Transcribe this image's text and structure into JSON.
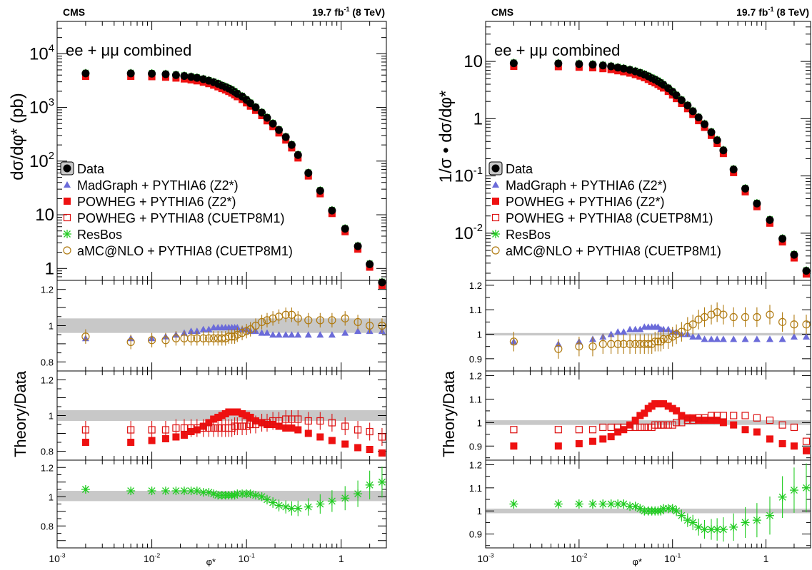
{
  "chart_data": {
    "type": "scatter",
    "x_scale": "log",
    "xlim": [
      0.001,
      3.0
    ],
    "x_ticks": [
      "10-3",
      "10-2",
      "10-1",
      "1"
    ],
    "xlabel": "φ*",
    "y_scale_top": "log",
    "colors": {
      "data": "#000000",
      "madgraph": "#6b6bd9",
      "powheg6": "#ee1111",
      "powheg8": "#dd1111",
      "resbos": "#22cc22",
      "amcnlo": "#b07a10",
      "band": "#c8c8c8"
    },
    "panels": [
      {
        "header_left": "CMS",
        "header_right": "19.7 fb-1 (8 TeV)",
        "channel": "ee + μμ combined",
        "ylabel_top": "dσ/dφ* (pb)",
        "ylabel_ratio": "Theory/Data",
        "ylim_top": [
          0.6,
          40000
        ],
        "y_ticks_top": [
          "1",
          "10",
          "102",
          "103",
          "104"
        ],
        "x": [
          0.002,
          0.006,
          0.01,
          0.014,
          0.018,
          0.022,
          0.026,
          0.03,
          0.035,
          0.04,
          0.045,
          0.05,
          0.055,
          0.06,
          0.065,
          0.07,
          0.075,
          0.08,
          0.09,
          0.1,
          0.11,
          0.125,
          0.145,
          0.165,
          0.19,
          0.22,
          0.26,
          0.3,
          0.35,
          0.45,
          0.6,
          0.8,
          1.1,
          1.5,
          2.0,
          2.7
        ],
        "data_values": [
          4300,
          4300,
          4250,
          4150,
          4000,
          3850,
          3700,
          3550,
          3350,
          3150,
          2950,
          2750,
          2550,
          2400,
          2250,
          2100,
          1950,
          1800,
          1600,
          1380,
          1200,
          1000,
          800,
          640,
          500,
          380,
          280,
          200,
          130,
          60,
          28,
          12,
          5.5,
          2.6,
          1.2,
          0.55
        ],
        "ratio_panels": [
          {
            "ylim": [
              0.75,
              1.25
            ],
            "y_ticks": [
              "0.8",
              "1",
              "1.2"
            ],
            "band": [
              0.96,
              1.04
            ],
            "series": [
              {
                "name": "MadGraph + PYTHIA6 (Z2*)",
                "marker": "triangle",
                "color": "#6b6bd9",
                "values": [
                  0.93,
                  0.93,
                  0.93,
                  0.94,
                  0.95,
                  0.96,
                  0.97,
                  0.97,
                  0.98,
                  0.98,
                  0.99,
                  0.99,
                  0.99,
                  0.99,
                  0.99,
                  0.99,
                  0.99,
                  0.99,
                  0.98,
                  0.98,
                  0.97,
                  0.97,
                  0.96,
                  0.96,
                  0.95,
                  0.95,
                  0.95,
                  0.95,
                  0.95,
                  0.95,
                  0.95,
                  0.95,
                  0.96,
                  0.97,
                  0.97,
                  0.97
                ]
              },
              {
                "name": "aMC@NLO + PYTHIA8 (CUETP8M1)",
                "marker": "circle-open",
                "color": "#b07a10",
                "err": 0.04,
                "values": [
                  0.94,
                  0.91,
                  0.92,
                  0.92,
                  0.93,
                  0.93,
                  0.93,
                  0.93,
                  0.93,
                  0.93,
                  0.93,
                  0.93,
                  0.93,
                  0.93,
                  0.94,
                  0.94,
                  0.94,
                  0.95,
                  0.96,
                  0.97,
                  0.98,
                  1.0,
                  1.02,
                  1.03,
                  1.04,
                  1.05,
                  1.06,
                  1.06,
                  1.04,
                  1.03,
                  1.03,
                  1.03,
                  1.04,
                  1.02,
                  1.0,
                  1.0
                ]
              }
            ]
          },
          {
            "ylim": [
              0.75,
              1.25
            ],
            "y_ticks": [
              "0.8",
              "1",
              "1.2"
            ],
            "band": [
              0.97,
              1.03
            ],
            "series": [
              {
                "name": "POWHEG + PYTHIA6 (Z2*)",
                "marker": "square-filled",
                "color": "#ee1111",
                "err": 0.02,
                "values": [
                  0.85,
                  0.85,
                  0.86,
                  0.87,
                  0.88,
                  0.89,
                  0.91,
                  0.92,
                  0.94,
                  0.96,
                  0.98,
                  0.99,
                  1.0,
                  1.01,
                  1.02,
                  1.02,
                  1.02,
                  1.02,
                  1.01,
                  1.0,
                  0.99,
                  0.97,
                  0.96,
                  0.95,
                  0.95,
                  0.94,
                  0.93,
                  0.93,
                  0.92,
                  0.9,
                  0.88,
                  0.86,
                  0.84,
                  0.82,
                  0.81,
                  0.79
                ]
              },
              {
                "name": "POWHEG + PYTHIA8 (CUETP8M1)",
                "marker": "square-open",
                "color": "#dd1111",
                "err": 0.05,
                "values": [
                  0.92,
                  0.92,
                  0.92,
                  0.92,
                  0.93,
                  0.93,
                  0.93,
                  0.93,
                  0.93,
                  0.93,
                  0.93,
                  0.93,
                  0.93,
                  0.93,
                  0.93,
                  0.93,
                  0.94,
                  0.94,
                  0.94,
                  0.94,
                  0.95,
                  0.95,
                  0.96,
                  0.96,
                  0.97,
                  0.97,
                  0.98,
                  0.98,
                  0.98,
                  0.97,
                  0.97,
                  0.96,
                  0.94,
                  0.92,
                  0.91,
                  0.88
                ]
              }
            ]
          },
          {
            "ylim": [
              0.65,
              1.25
            ],
            "y_ticks": [
              "0.8",
              "1",
              "1.2"
            ],
            "band": [
              0.97,
              1.04
            ],
            "series": [
              {
                "name": "ResBos",
                "marker": "star",
                "color": "#22cc22",
                "err_growth": true,
                "values": [
                  1.05,
                  1.04,
                  1.04,
                  1.04,
                  1.04,
                  1.04,
                  1.04,
                  1.04,
                  1.03,
                  1.03,
                  1.02,
                  1.01,
                  1.01,
                  1.01,
                  1.01,
                  1.01,
                  1.01,
                  1.02,
                  1.02,
                  1.02,
                  1.02,
                  1.01,
                  1.0,
                  0.98,
                  0.96,
                  0.94,
                  0.93,
                  0.92,
                  0.92,
                  0.93,
                  0.95,
                  0.97,
                  0.99,
                  1.02,
                  1.08,
                  1.1
                ]
              }
            ]
          }
        ]
      },
      {
        "header_left": "CMS",
        "header_right": "19.7 fb-1 (8 TeV)",
        "channel": "ee + μμ combined",
        "ylabel_top": "1/σ • dσ/dφ*",
        "ylabel_ratio": "Theory/Data",
        "ylim_top": [
          0.0015,
          50
        ],
        "y_ticks_top": [
          "10-2",
          "10-1",
          "1",
          "10"
        ],
        "x": [
          0.002,
          0.006,
          0.01,
          0.014,
          0.018,
          0.022,
          0.026,
          0.03,
          0.035,
          0.04,
          0.045,
          0.05,
          0.055,
          0.06,
          0.065,
          0.07,
          0.075,
          0.08,
          0.09,
          0.1,
          0.11,
          0.125,
          0.145,
          0.165,
          0.19,
          0.22,
          0.26,
          0.3,
          0.35,
          0.45,
          0.6,
          0.8,
          1.1,
          1.5,
          2.0,
          2.7
        ],
        "data_values": [
          9.3,
          9.2,
          9.0,
          8.8,
          8.5,
          8.2,
          7.8,
          7.5,
          7.1,
          6.7,
          6.3,
          5.9,
          5.5,
          5.1,
          4.8,
          4.5,
          4.2,
          3.9,
          3.4,
          2.95,
          2.55,
          2.1,
          1.7,
          1.35,
          1.05,
          0.8,
          0.58,
          0.42,
          0.28,
          0.13,
          0.06,
          0.033,
          0.017,
          0.008,
          0.0042,
          0.0022
        ],
        "ratio_panels": [
          {
            "ylim": [
              0.85,
              1.22
            ],
            "y_ticks": [
              "0.9",
              "1",
              "1.1",
              "1.2"
            ],
            "band": [
              0.995,
              1.005
            ],
            "series": [
              {
                "name": "MadGraph + PYTHIA6 (Z2*)",
                "marker": "triangle",
                "color": "#6b6bd9",
                "values": [
                  0.97,
                  0.96,
                  0.97,
                  0.98,
                  0.99,
                  1.0,
                  1.01,
                  1.01,
                  1.02,
                  1.02,
                  1.02,
                  1.03,
                  1.03,
                  1.03,
                  1.03,
                  1.03,
                  1.02,
                  1.02,
                  1.02,
                  1.01,
                  1.01,
                  1.0,
                  1.0,
                  0.99,
                  0.99,
                  0.98,
                  0.98,
                  0.98,
                  0.98,
                  0.98,
                  0.98,
                  0.98,
                  0.98,
                  0.98,
                  0.99,
                  0.99
                ]
              },
              {
                "name": "aMC@NLO + PYTHIA8 (CUETP8M1)",
                "marker": "circle-open",
                "color": "#b07a10",
                "err": 0.04,
                "values": [
                  0.97,
                  0.94,
                  0.95,
                  0.95,
                  0.96,
                  0.96,
                  0.96,
                  0.96,
                  0.96,
                  0.96,
                  0.96,
                  0.96,
                  0.96,
                  0.96,
                  0.97,
                  0.97,
                  0.97,
                  0.98,
                  0.98,
                  0.99,
                  1.0,
                  1.01,
                  1.03,
                  1.04,
                  1.06,
                  1.07,
                  1.08,
                  1.09,
                  1.08,
                  1.07,
                  1.07,
                  1.07,
                  1.08,
                  1.05,
                  1.04,
                  1.04
                ]
              }
            ]
          },
          {
            "ylim": [
              0.84,
              1.22
            ],
            "y_ticks": [
              "0.9",
              "1",
              "1.1",
              "1.2"
            ],
            "band": [
              0.99,
              1.01
            ],
            "series": [
              {
                "name": "POWHEG + PYTHIA6 (Z2*)",
                "marker": "square-filled",
                "color": "#ee1111",
                "values": [
                  0.9,
                  0.9,
                  0.91,
                  0.92,
                  0.93,
                  0.94,
                  0.96,
                  0.97,
                  0.99,
                  1.01,
                  1.03,
                  1.04,
                  1.06,
                  1.07,
                  1.08,
                  1.08,
                  1.08,
                  1.08,
                  1.07,
                  1.06,
                  1.05,
                  1.03,
                  1.02,
                  1.02,
                  1.01,
                  1.01,
                  1.01,
                  1.01,
                  1.0,
                  0.99,
                  0.97,
                  0.96,
                  0.93,
                  0.91,
                  0.9,
                  0.88
                ]
              },
              {
                "name": "POWHEG + PYTHIA8 (CUETP8M1)",
                "marker": "square-open",
                "color": "#dd1111",
                "values": [
                  0.97,
                  0.97,
                  0.97,
                  0.97,
                  0.98,
                  0.98,
                  0.98,
                  0.98,
                  0.98,
                  0.98,
                  0.98,
                  0.98,
                  0.98,
                  0.98,
                  0.99,
                  0.99,
                  0.99,
                  0.99,
                  0.99,
                  0.99,
                  1.0,
                  1.0,
                  1.01,
                  1.01,
                  1.02,
                  1.02,
                  1.03,
                  1.03,
                  1.03,
                  1.03,
                  1.03,
                  1.02,
                  1.01,
                  0.99,
                  0.98,
                  0.92
                ]
              }
            ]
          },
          {
            "ylim": [
              0.84,
              1.22
            ],
            "y_ticks": [
              "0.9",
              "1",
              "1.1",
              "1.2"
            ],
            "band": [
              0.99,
              1.01
            ],
            "series": [
              {
                "name": "ResBos",
                "marker": "star",
                "color": "#22cc22",
                "err_growth": true,
                "values": [
                  1.03,
                  1.03,
                  1.03,
                  1.03,
                  1.03,
                  1.03,
                  1.03,
                  1.03,
                  1.02,
                  1.02,
                  1.01,
                  1.0,
                  1.0,
                  1.0,
                  1.0,
                  1.0,
                  1.0,
                  1.01,
                  1.01,
                  1.01,
                  1.0,
                  0.98,
                  0.96,
                  0.95,
                  0.93,
                  0.92,
                  0.92,
                  0.92,
                  0.92,
                  0.93,
                  0.95,
                  0.96,
                  0.98,
                  1.06,
                  1.09,
                  1.1
                ]
              }
            ]
          }
        ]
      }
    ],
    "legend": [
      {
        "label": "Data",
        "marker": "data"
      },
      {
        "label": "MadGraph + PYTHIA6 (Z2*)",
        "marker": "triangle"
      },
      {
        "label": "POWHEG + PYTHIA6 (Z2*)",
        "marker": "square-filled"
      },
      {
        "label": "POWHEG + PYTHIA8 (CUETP8M1)",
        "marker": "square-open"
      },
      {
        "label": "ResBos",
        "marker": "star"
      },
      {
        "label": "aMC@NLO + PYTHIA8 (CUETP8M1)",
        "marker": "circle-open"
      }
    ],
    "legend_position": "lower-left",
    "grid": false
  }
}
